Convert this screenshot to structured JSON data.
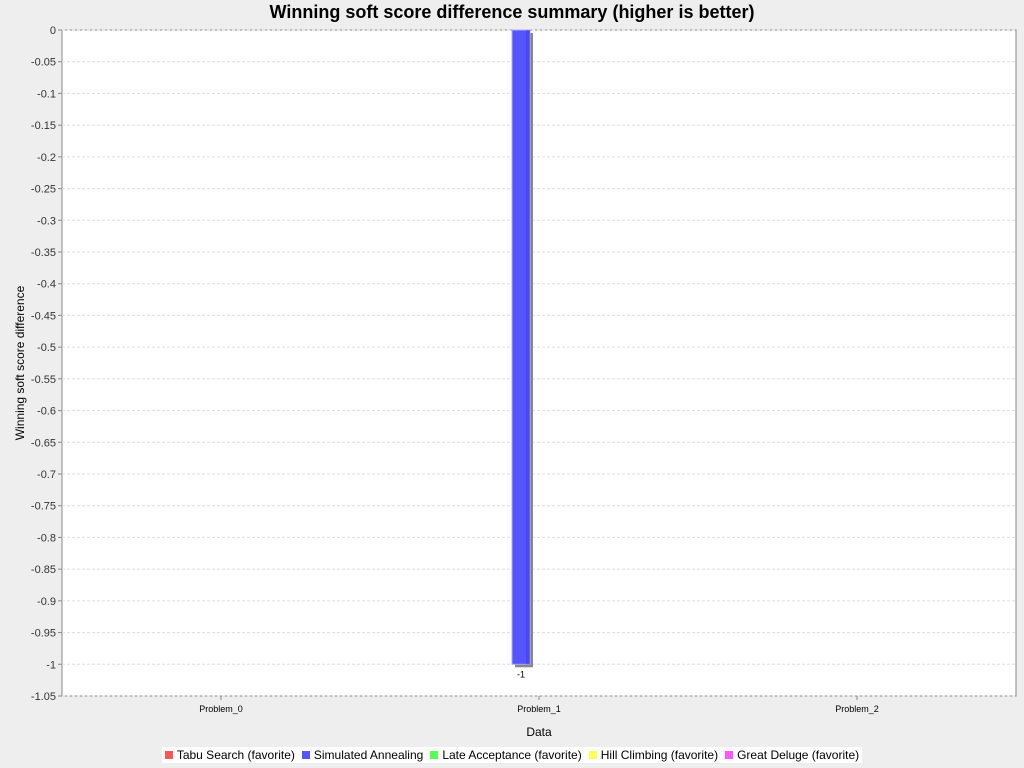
{
  "chart_data": {
    "type": "bar",
    "title": "Winning soft score difference summary (higher is better)",
    "xlabel": "Data",
    "ylabel": "Winning soft score difference",
    "categories": [
      "Problem_0",
      "Problem_1",
      "Problem_2"
    ],
    "ylim": [
      -1.05,
      0
    ],
    "yticks": [
      "0",
      "-0.05",
      "-0.1",
      "-0.15",
      "-0.2",
      "-0.25",
      "-0.3",
      "-0.35",
      "-0.4",
      "-0.45",
      "-0.5",
      "-0.55",
      "-0.6",
      "-0.65",
      "-0.7",
      "-0.75",
      "-0.8",
      "-0.85",
      "-0.9",
      "-0.95",
      "-1",
      "-1.05"
    ],
    "grid": true,
    "legend_position": "bottom",
    "series": [
      {
        "name": "Tabu Search (favorite)",
        "color": "#ff5555",
        "values": [
          0,
          0,
          0
        ]
      },
      {
        "name": "Simulated Annealing",
        "color": "#5555ff",
        "values": [
          0,
          -1,
          0
        ],
        "labels": [
          null,
          "-1",
          null
        ]
      },
      {
        "name": "Late Acceptance (favorite)",
        "color": "#55ff55",
        "values": [
          0,
          0,
          0
        ]
      },
      {
        "name": "Hill Climbing (favorite)",
        "color": "#ffff55",
        "values": [
          0,
          0,
          0
        ]
      },
      {
        "name": "Great Deluge (favorite)",
        "color": "#ff55ff",
        "values": [
          0,
          0,
          0
        ]
      }
    ]
  }
}
